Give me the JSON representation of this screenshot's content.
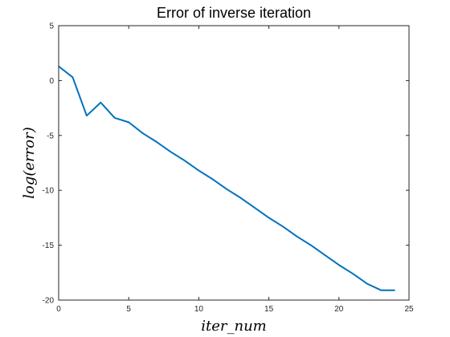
{
  "chart_data": {
    "type": "line",
    "title": "Error of inverse iteration",
    "xlabel": "iter_num",
    "ylabel": "log(error)",
    "xlim": [
      0,
      25
    ],
    "ylim": [
      -20,
      5
    ],
    "xticks": [
      0,
      5,
      10,
      15,
      20,
      25
    ],
    "yticks": [
      5,
      0,
      -5,
      -10,
      -15,
      -20
    ],
    "grid": false,
    "series": [
      {
        "color": "#0072BD",
        "x": [
          0,
          1,
          2,
          3,
          4,
          5,
          6,
          7,
          8,
          9,
          10,
          11,
          12,
          13,
          14,
          15,
          16,
          17,
          18,
          19,
          20,
          21,
          22,
          23,
          24
        ],
        "y": [
          1.3,
          0.3,
          -3.2,
          -2.0,
          -3.4,
          -3.8,
          -4.8,
          -5.6,
          -6.5,
          -7.3,
          -8.2,
          -9.0,
          -9.9,
          -10.7,
          -11.6,
          -12.5,
          -13.3,
          -14.2,
          -15.0,
          -15.9,
          -16.8,
          -17.6,
          -18.5,
          -19.1,
          -19.1
        ]
      }
    ]
  }
}
